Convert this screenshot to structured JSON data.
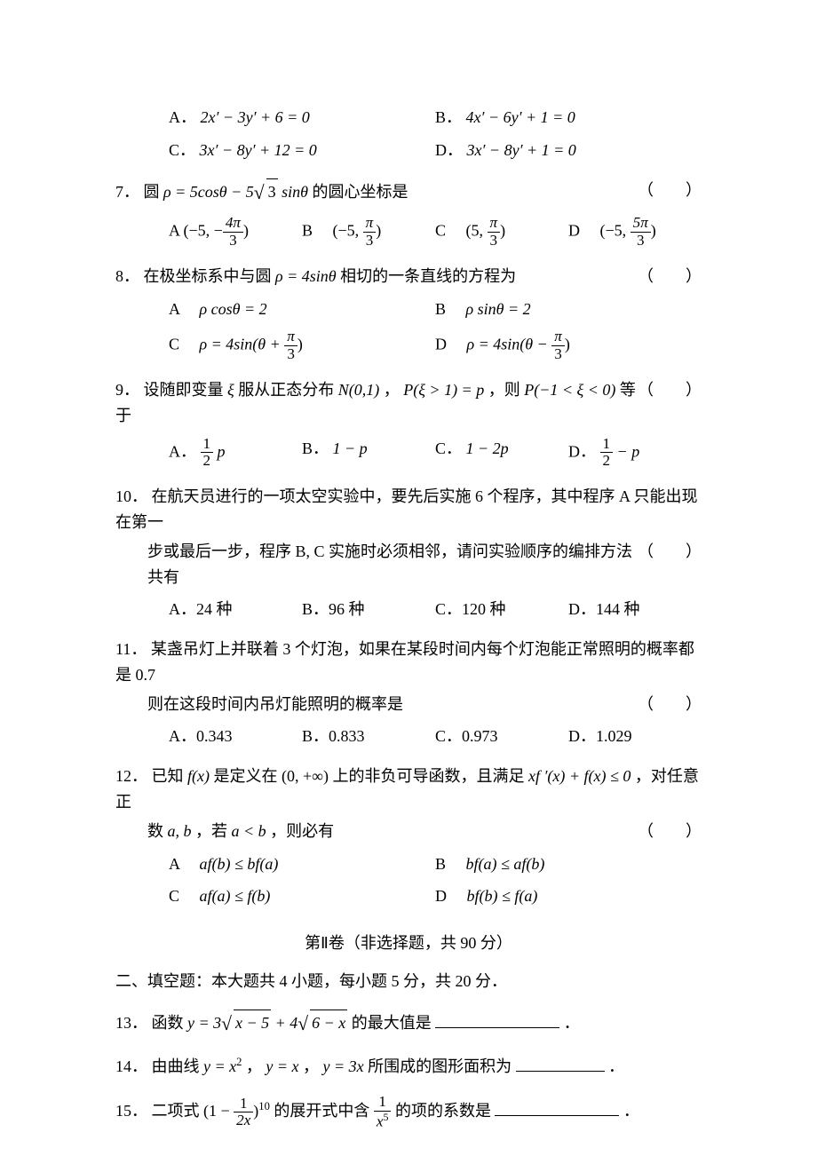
{
  "q6": {
    "opts": {
      "A": "A．",
      "A_eq": "2x′ − 3y′ + 6 = 0",
      "B": "B．",
      "B_eq": "4x′ − 6y′ + 1 = 0",
      "C": "C．",
      "C_eq": "3x′ − 8y′ + 12 = 0",
      "D": "D．",
      "D_eq": "3x′ − 8y′ + 1 = 0"
    }
  },
  "q7": {
    "num": "7．",
    "text_pre": "圆 ",
    "eq": "ρ = 5cosθ − 5",
    "eq_post": " sinθ",
    "text_post": " 的圆心坐标是",
    "paren": "（　　）",
    "opts": {
      "A": "A",
      "A_eq": "(−5, −",
      "A_frac_num": "4π",
      "A_frac_den": "3",
      "A_close": ")",
      "B": "B　",
      "B_eq": "(−5, ",
      "B_frac_num": "π",
      "B_frac_den": "3",
      "B_close": ")",
      "C": "C　",
      "C_eq": "(5, ",
      "C_frac_num": "π",
      "C_frac_den": "3",
      "C_close": ")",
      "D": "D　",
      "D_eq": "(−5, ",
      "D_frac_num": "5π",
      "D_frac_den": "3",
      "D_close": ")"
    }
  },
  "q8": {
    "num": "8．",
    "text_pre": "在极坐标系中与圆 ",
    "eq": "ρ = 4sinθ",
    "text_post": " 相切的一条直线的方程为",
    "paren": "（　　）",
    "opts": {
      "A": "A　",
      "A_eq": "ρ cosθ = 2",
      "B": "B　",
      "B_eq": "ρ sinθ = 2",
      "C": "C　",
      "C_pre": "ρ = 4sin(θ + ",
      "C_frac_num": "π",
      "C_frac_den": "3",
      "C_close": ")",
      "D": "D　",
      "D_pre": "ρ = 4sin(θ − ",
      "D_frac_num": "π",
      "D_frac_den": "3",
      "D_close": ")"
    }
  },
  "q9": {
    "num": "9．",
    "text_pre": "设随即变量 ",
    "xi": "ξ",
    "text_mid1": " 服从正态分布 ",
    "N": "N(0,1)",
    "text_mid2": "，",
    "P1": "P(ξ > 1) = p",
    "text_mid3": "，则 ",
    "P2": "P(−1 < ξ < 0)",
    "text_post": " 等于",
    "paren": "（　　）",
    "opts": {
      "A": "A．",
      "A_num": "1",
      "A_den": "2",
      "A_post": " p",
      "B": "B．",
      "B_eq": "1 − p",
      "C": "C．",
      "C_eq": "1 − 2p",
      "D": "D．",
      "D_num": "1",
      "D_den": "2",
      "D_post": " − p"
    }
  },
  "q10": {
    "num": "10．",
    "line1": "在航天员进行的一项太空实验中，要先后实施 6 个程序，其中程序 A 只能出现在第一",
    "line2": "步或最后一步，程序 B, C 实施时必须相邻，请问实验顺序的编排方法共有",
    "paren": "（　　）",
    "opts": {
      "A": "A．24 种",
      "B": "B．96 种",
      "C": "C．120 种",
      "D": "D．144 种"
    }
  },
  "q11": {
    "num": "11．",
    "line1": "某盏吊灯上并联着 3 个灯泡，如果在某段时间内每个灯泡能正常照明的概率都是 0.7",
    "line2": "则在这段时间内吊灯能照明的概率是",
    "paren": "（　　）",
    "opts": {
      "A": "A．0.343",
      "B": "B．0.833",
      "C": "C．0.973",
      "D": "D．1.029"
    }
  },
  "q12": {
    "num": "12．",
    "text_pre": "已知 ",
    "fx": "f(x)",
    "text_mid1": " 是定义在 ",
    "interval": "(0, +∞)",
    "text_mid2": " 上的非负可导函数，且满足 ",
    "ineq": "xf ′(x) + f(x) ≤ 0",
    "text_mid3": "，对任意正",
    "line2_pre": "数 ",
    "ab": "a, b",
    "line2_mid": "，若 ",
    "cond": "a < b",
    "line2_post": "，则必有",
    "paren": "（　　）",
    "opts": {
      "A": "A　",
      "A_eq": "af(b) ≤ bf(a)",
      "B": "B　",
      "B_eq": "bf(a) ≤ af(b)",
      "C": "C　",
      "C_eq": "af(a) ≤ f(b)",
      "D": "D　",
      "D_eq": "bf(b) ≤ f(a)"
    }
  },
  "section2": {
    "title": "第Ⅱ卷（非选择题，共 90 分）",
    "subtitle": "二、填空题：本大题共 4 小题，每小题 5 分，共 20 分．"
  },
  "q13": {
    "num": "13．",
    "text_pre": "函数 ",
    "eq_pre": "y = 3",
    "r1": "x − 5",
    "eq_mid": " + 4",
    "r2": "6 − x",
    "text_post": " 的最大值是",
    "period": "．"
  },
  "q14": {
    "num": "14．",
    "text_pre": "由曲线 ",
    "e1": "y = x",
    "sup2": "2",
    "text_mid1": "，",
    "e2": "y = x",
    "text_mid2": "，",
    "e3": "y = 3x",
    "text_post": " 所围成的图形面积为",
    "period": "．"
  },
  "q15": {
    "num": "15．",
    "text_pre": "二项式 ",
    "eq_open": "(1 − ",
    "f1_num": "1",
    "f1_den": "2x",
    "eq_mid": ")",
    "sup10": "10",
    "text_mid": " 的展开式中含 ",
    "f2_num": "1",
    "f2_den_pre": "x",
    "f2_den_sup": "5",
    "text_post": " 的项的系数是",
    "period": "．"
  }
}
